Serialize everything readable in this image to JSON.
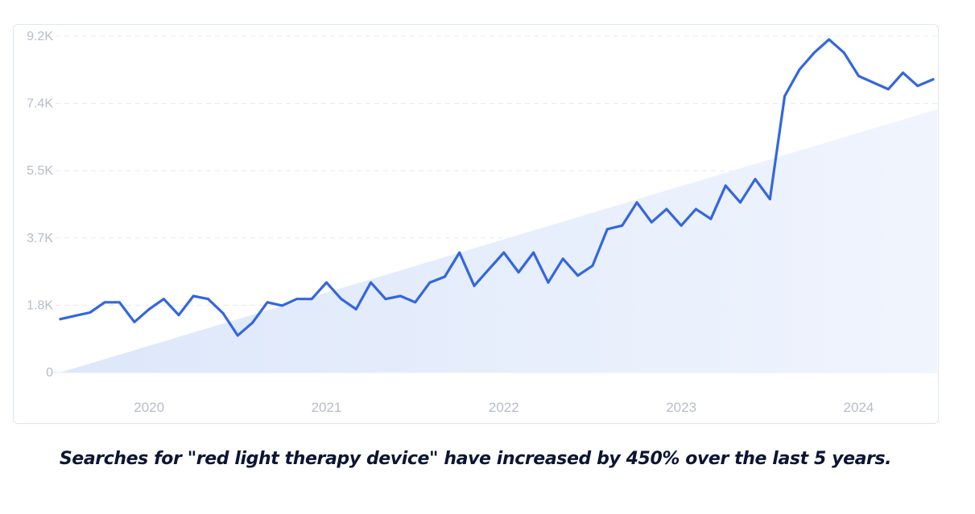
{
  "chart_data": {
    "type": "line",
    "title": "",
    "xlabel": "",
    "ylabel": "",
    "y_ticks": [
      "0",
      "1.8K",
      "3.7K",
      "5.5K",
      "7.4K",
      "9.2K"
    ],
    "y_tick_values": [
      0,
      1840,
      3680,
      5520,
      7360,
      9200
    ],
    "ylim": [
      0,
      9200
    ],
    "x_ticks": [
      "2020",
      "2021",
      "2022",
      "2023",
      "2024"
    ],
    "x_tick_positions": [
      2020.25,
      2021.25,
      2022.25,
      2023.25,
      2024.25
    ],
    "xlim": [
      2019.75,
      2024.67
    ],
    "grid": true,
    "series": [
      {
        "name": "red light therapy device",
        "color": "#3366e0",
        "x": [
          2019.75,
          2019.833,
          2019.917,
          2020.0,
          2020.083,
          2020.167,
          2020.25,
          2020.333,
          2020.417,
          2020.5,
          2020.583,
          2020.667,
          2020.75,
          2020.833,
          2020.917,
          2021.0,
          2021.083,
          2021.167,
          2021.25,
          2021.333,
          2021.417,
          2021.5,
          2021.583,
          2021.667,
          2021.75,
          2021.833,
          2021.917,
          2022.0,
          2022.083,
          2022.167,
          2022.25,
          2022.333,
          2022.417,
          2022.5,
          2022.583,
          2022.667,
          2022.75,
          2022.833,
          2022.917,
          2023.0,
          2023.083,
          2023.167,
          2023.25,
          2023.333,
          2023.417,
          2023.5,
          2023.583,
          2023.667,
          2023.75,
          2023.833,
          2023.917,
          2024.0,
          2024.083,
          2024.167,
          2024.25,
          2024.333,
          2024.417,
          2024.5,
          2024.583,
          2024.67
        ],
        "values": [
          1460,
          1550,
          1640,
          1920,
          1920,
          1380,
          1730,
          2010,
          1570,
          2090,
          2010,
          1620,
          1010,
          1360,
          1920,
          1830,
          2010,
          2010,
          2460,
          2010,
          1730,
          2460,
          2010,
          2090,
          1920,
          2460,
          2620,
          3280,
          2370,
          2830,
          3280,
          2740,
          3280,
          2460,
          3110,
          2650,
          2920,
          3920,
          4020,
          4650,
          4110,
          4470,
          4020,
          4470,
          4200,
          5110,
          4650,
          5290,
          4740,
          7560,
          8290,
          8750,
          9110,
          8750,
          8110,
          7930,
          7750,
          8200,
          7840,
          8020
        ]
      }
    ],
    "trend_area": {
      "start_value": 0,
      "end_value": 7200
    }
  },
  "caption": "Searches for \"red light therapy device\" have increased by 450% over the last 5 years."
}
